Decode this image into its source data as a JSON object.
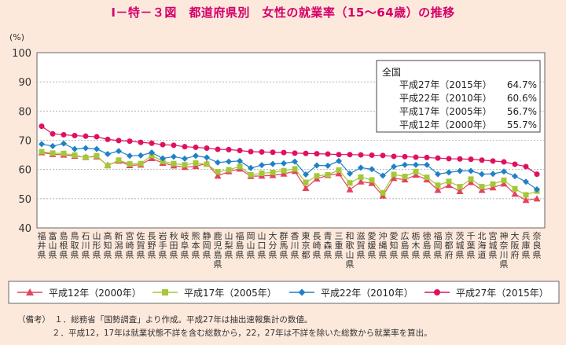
{
  "title": "Ⅰ－特－３図　都道府県別　女性の就業率（15～64歳）の推移",
  "chart_data": {
    "type": "line",
    "title": "Ⅰ－特－３図　都道府県別　女性の就業率（15～64歳）の推移",
    "ylabel": "(%)",
    "ylim": [
      40,
      100
    ],
    "yticks": [
      40,
      50,
      60,
      70,
      80,
      90,
      100
    ],
    "categories": [
      "福井県",
      "富山県",
      "島根県",
      "鳥取県",
      "石川県",
      "山形県",
      "高知県",
      "新潟県",
      "宮崎県",
      "佐賀県",
      "長野県",
      "岩手県",
      "秋田県",
      "岐阜県",
      "熊本県",
      "静岡県",
      "鹿児島県",
      "山梨県",
      "福島県",
      "岡山県",
      "山口県",
      "大分県",
      "群馬県",
      "香川県",
      "東京都",
      "長崎県",
      "青森県",
      "三重県",
      "和歌山県",
      "滋賀県",
      "愛媛県",
      "沖縄県",
      "愛知県",
      "広島県",
      "栃木県",
      "徳島県",
      "福岡県",
      "京都府",
      "茨城県",
      "千葉県",
      "北海道",
      "宮城県",
      "神奈川県",
      "大阪府",
      "兵庫県",
      "奈良県"
    ],
    "series": [
      {
        "name": "平成12年（2000年）",
        "color": "#e2455d",
        "marker": "triangle",
        "values": [
          65.8,
          65.2,
          65.0,
          64.6,
          64.2,
          64.4,
          61.5,
          62.9,
          61.4,
          61.6,
          63.8,
          62.2,
          61.3,
          60.8,
          61.1,
          62.1,
          57.8,
          59.3,
          60.2,
          57.7,
          57.8,
          58.0,
          58.5,
          59.4,
          53.6,
          56.8,
          58.0,
          58.6,
          53.1,
          55.8,
          55.3,
          51.0,
          57.0,
          56.5,
          58.1,
          56.5,
          52.9,
          54.6,
          52.5,
          55.6,
          52.9,
          53.8,
          55.1,
          51.6,
          49.5,
          50.0
        ]
      },
      {
        "name": "平成17年（2005年）",
        "color": "#a5c738",
        "marker": "square",
        "values": [
          66.1,
          65.6,
          65.5,
          64.9,
          64.1,
          64.7,
          61.3,
          63.2,
          61.9,
          62.0,
          64.8,
          62.8,
          62.0,
          61.6,
          62.2,
          61.8,
          59.2,
          59.9,
          61.0,
          58.2,
          58.7,
          59.0,
          59.6,
          60.2,
          55.6,
          57.8,
          58.2,
          59.8,
          55.4,
          57.4,
          56.4,
          52.0,
          58.3,
          57.6,
          59.3,
          57.3,
          54.6,
          55.9,
          54.1,
          56.7,
          54.1,
          55.0,
          56.3,
          53.4,
          51.3,
          52.6
        ]
      },
      {
        "name": "平成22年（2010年）",
        "color": "#1f80c8",
        "marker": "diamond",
        "values": [
          68.7,
          68.0,
          68.9,
          67.0,
          67.3,
          67.0,
          65.3,
          66.3,
          64.7,
          64.8,
          65.8,
          63.8,
          64.4,
          63.7,
          64.7,
          64.1,
          62.4,
          62.7,
          62.9,
          60.5,
          61.5,
          61.9,
          62.1,
          62.7,
          58.3,
          61.4,
          61.3,
          62.9,
          58.6,
          60.6,
          60.1,
          57.9,
          61.0,
          61.6,
          61.6,
          61.6,
          58.4,
          59.0,
          59.5,
          59.5,
          58.4,
          58.5,
          59.3,
          57.7,
          55.8,
          53.2
        ]
      },
      {
        "name": "平成27年（2015年）",
        "color": "#e0105f",
        "marker": "circle",
        "values": [
          74.8,
          72.2,
          71.9,
          71.6,
          71.4,
          71.2,
          70.3,
          69.9,
          69.7,
          69.3,
          69.0,
          68.5,
          68.3,
          67.8,
          67.6,
          67.3,
          66.9,
          66.8,
          66.5,
          66.1,
          66.0,
          65.9,
          65.8,
          65.6,
          65.5,
          65.4,
          65.3,
          65.1,
          65.1,
          65.0,
          64.9,
          64.8,
          64.5,
          64.4,
          64.2,
          64.1,
          63.9,
          63.7,
          63.6,
          63.5,
          63.2,
          62.9,
          62.6,
          61.8,
          61.0,
          58.4
        ]
      }
    ],
    "national_box": {
      "heading": "全国",
      "rows": [
        {
          "label": "平成27年（2015年）",
          "value": "64.7%"
        },
        {
          "label": "平成22年（2010年）",
          "value": "60.6%"
        },
        {
          "label": "平成17年（2005年）",
          "value": "56.7%"
        },
        {
          "label": "平成12年（2000年）",
          "value": "55.7%"
        }
      ]
    }
  },
  "notes": {
    "heading": "（備考）",
    "lines": [
      "１．総務省「国勢調査」より作成。平成27年は抽出速報集計の数値。",
      "２．平成12，17年は就業状態不詳を含む総数から，22，27年は不詳を除いた総数から就業率を算出。"
    ]
  }
}
